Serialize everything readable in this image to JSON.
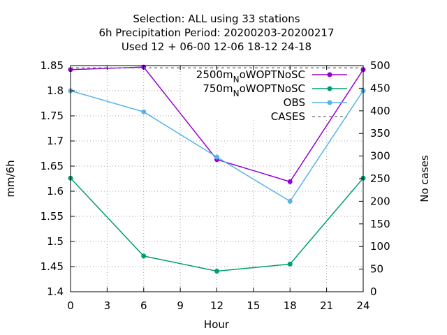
{
  "chart_data": {
    "type": "line",
    "title_lines": [
      "Selection: ALL using    33 stations",
      "6h Precipitation   Period: 20200203-20200217",
      "Used  12 + 06-00 12-06 18-12 24-18"
    ],
    "xlabel": "Hour",
    "ylabel": "mm/6h",
    "y2label": "No cases",
    "x": [
      0,
      6,
      12,
      18,
      24
    ],
    "xlim": [
      0,
      24
    ],
    "xticks": [
      0,
      3,
      6,
      9,
      12,
      15,
      18,
      21,
      24
    ],
    "ylim": [
      1.4,
      1.85
    ],
    "yticks": [
      "1.4",
      "1.45",
      "1.5",
      "1.55",
      "1.6",
      "1.65",
      "1.7",
      "1.75",
      "1.8",
      "1.85"
    ],
    "y2lim": [
      0,
      500
    ],
    "y2ticks": [
      0,
      50,
      100,
      150,
      200,
      250,
      300,
      350,
      400,
      450,
      500
    ],
    "grid": true,
    "legend_position": "top-right",
    "series": [
      {
        "name": "2500m",
        "name_sub": "N",
        "name_suffix": "oWOPTNoSC",
        "color": "#9400d3",
        "axis": "y",
        "marker": "filled-circle",
        "values": [
          1.842,
          1.847,
          1.663,
          1.619,
          1.842
        ]
      },
      {
        "name": "750m",
        "name_sub": "N",
        "name_suffix": "oWOPTNoSC",
        "color": "#009e73",
        "axis": "y",
        "marker": "filled-circle",
        "values": [
          1.626,
          1.471,
          1.441,
          1.455,
          1.626
        ]
      },
      {
        "name": "OBS",
        "name_sub": "",
        "name_suffix": "",
        "color": "#56b4e9",
        "axis": "y",
        "marker": "filled-circle",
        "values": [
          1.8,
          1.758,
          1.668,
          1.58,
          1.8
        ]
      },
      {
        "name": "CASES",
        "name_sub": "",
        "name_suffix": "",
        "color": "#808080",
        "axis": "y2",
        "marker": "none",
        "dashed": true,
        "values": [
          495,
          495,
          495,
          495,
          495
        ]
      }
    ]
  }
}
